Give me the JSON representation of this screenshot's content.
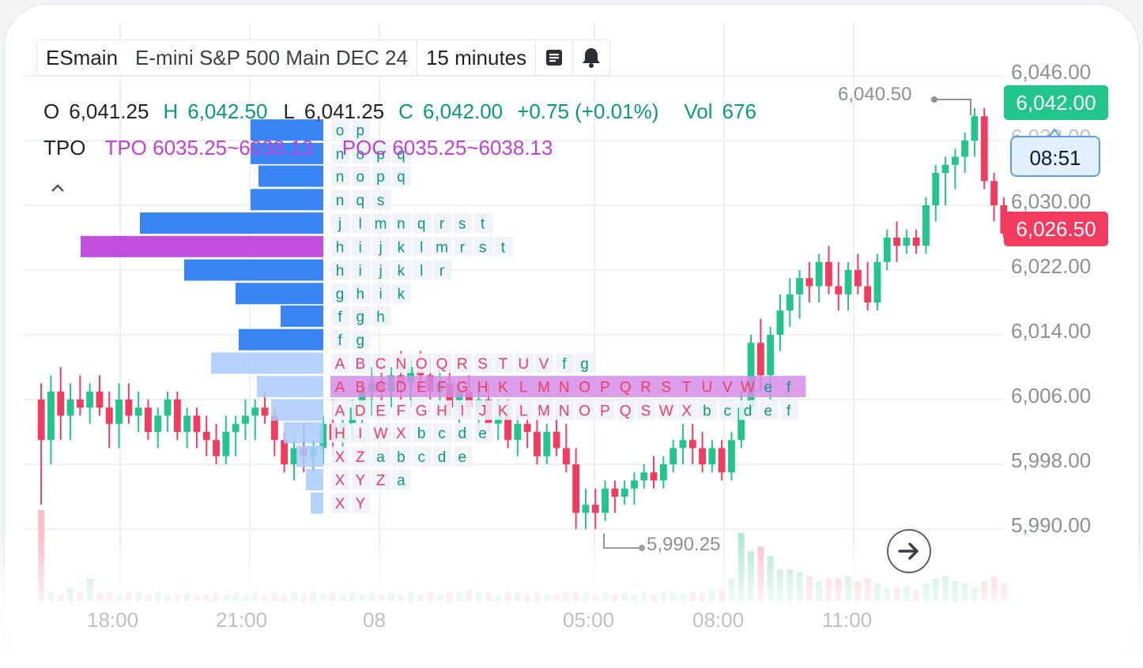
{
  "colors": {
    "up": "#22c58b",
    "down": "#f23b5f",
    "profile_dark": "#2f7ef5",
    "profile_light": "#a9cbfc",
    "poc": "#c046dc",
    "grid": "#eef0f3"
  },
  "header": {
    "symbol": "ESmain",
    "description": "E-mini S&P 500 Main DEC 24",
    "interval": "15 minutes",
    "icons": [
      "notes-icon",
      "bell-icon"
    ]
  },
  "ohlc": {
    "o_label": "O",
    "o_value": "6,041.25",
    "h_label": "H",
    "h_value": "6,042.50",
    "l_label": "L",
    "l_value": "6,041.25",
    "c_label": "C",
    "c_value": "6,042.00",
    "change": "+0.75 (+0.01%)",
    "vol_label": "Vol",
    "vol_value": "676"
  },
  "tpo": {
    "label": "TPO",
    "value_area": "TPO 6035.25~6038.13",
    "poc": "POC 6035.25~6038.13"
  },
  "price_tags": {
    "last": "6,042.00",
    "timer": "08:51",
    "other": "6,026.50"
  },
  "annotations": {
    "high": "6,040.50",
    "low": "5,990.25"
  },
  "chart_data": {
    "type": "candlestick",
    "y_axis_ticks": [
      "6,046.00",
      "6,038.00",
      "6,030.00",
      "6,022.00",
      "6,014.00",
      "6,006.00",
      "5,998.00",
      "5,990.00"
    ],
    "y_axis_values": [
      6046,
      6038,
      6030,
      6022,
      6014,
      6006,
      5998,
      5990
    ],
    "x_axis_ticks": [
      "18:00",
      "21:00",
      "08",
      "05:00",
      "08:00",
      "11:00"
    ],
    "ylim": [
      5984,
      6052
    ],
    "grid": true,
    "candles": [
      [
        6006,
        6008,
        5993,
        6001
      ],
      [
        6001,
        6009,
        5998,
        6007
      ],
      [
        6007,
        6010,
        6001,
        6004
      ],
      [
        6004,
        6008,
        6001,
        6006
      ],
      [
        6006,
        6009,
        6004,
        6005
      ],
      [
        6005,
        6008,
        6003,
        6007
      ],
      [
        6007,
        6009,
        6004,
        6005
      ],
      [
        6005,
        6007,
        6000,
        6003
      ],
      [
        6003,
        6008,
        6000,
        6006
      ],
      [
        6006,
        6008,
        6003,
        6004
      ],
      [
        6004,
        6007,
        6002,
        6005
      ],
      [
        6005,
        6006,
        6001,
        6002
      ],
      [
        6002,
        6005,
        6000,
        6004
      ],
      [
        6004,
        6007,
        6002,
        6006
      ],
      [
        6006,
        6007,
        6001,
        6002
      ],
      [
        6002,
        6005,
        6000,
        6004
      ],
      [
        6004,
        6005,
        6000,
        6002
      ],
      [
        6002,
        6004,
        5999,
        6001
      ],
      [
        6001,
        6003,
        5998,
        5999
      ],
      [
        5999,
        6004,
        5998,
        6002
      ],
      [
        6002,
        6004,
        5999,
        6003
      ],
      [
        6003,
        6006,
        6001,
        6004
      ],
      [
        6004,
        6006,
        6001,
        6005
      ],
      [
        6005,
        6007,
        6003,
        6004
      ],
      [
        6004,
        6005,
        5999,
        6001
      ],
      [
        6001,
        6002,
        5997,
        5998
      ],
      [
        5998,
        6001,
        5996,
        6000
      ],
      [
        6000,
        6003,
        5997,
        5999
      ],
      [
        5999,
        6001,
        5997,
        6000
      ],
      [
        6000,
        6004,
        5998,
        6003
      ],
      [
        6003,
        6006,
        5999,
        6001
      ],
      [
        6001,
        6005,
        5998,
        6003
      ],
      [
        6003,
        6006,
        6001,
        6005
      ],
      [
        6005,
        6008,
        6003,
        6007
      ],
      [
        6007,
        6010,
        6004,
        6008
      ],
      [
        6008,
        6011,
        6005,
        6007
      ],
      [
        6007,
        6010,
        6005,
        6009
      ],
      [
        6009,
        6012,
        6006,
        6008
      ],
      [
        6008,
        6011,
        6005,
        6010
      ],
      [
        6010,
        6012,
        6007,
        6009
      ],
      [
        6009,
        6011,
        6006,
        6007
      ],
      [
        6007,
        6010,
        6004,
        6008
      ],
      [
        6008,
        6010,
        6004,
        6005
      ],
      [
        6005,
        6008,
        6003,
        6007
      ],
      [
        6007,
        6009,
        6004,
        6005
      ],
      [
        6005,
        6008,
        6002,
        6006
      ],
      [
        6006,
        6008,
        6002,
        6003
      ],
      [
        6003,
        6006,
        6001,
        6004
      ],
      [
        6004,
        6006,
        6000,
        6001
      ],
      [
        6001,
        6004,
        5999,
        6003
      ],
      [
        6003,
        6005,
        6000,
        6002
      ],
      [
        6002,
        6004,
        5998,
        5999
      ],
      [
        5999,
        6003,
        5998,
        6002
      ],
      [
        6002,
        6004,
        5999,
        6000
      ],
      [
        6000,
        6003,
        5997,
        5998
      ],
      [
        5998,
        6000,
        5990,
        5992
      ],
      [
        5992,
        5995,
        5990,
        5993
      ],
      [
        5993,
        5995,
        5990,
        5992
      ],
      [
        5992,
        5996,
        5991,
        5995
      ],
      [
        5995,
        5996,
        5992,
        5994
      ],
      [
        5994,
        5996,
        5993,
        5995
      ],
      [
        5995,
        5997,
        5993,
        5996
      ],
      [
        5996,
        5998,
        5995,
        5997
      ],
      [
        5997,
        5999,
        5995,
        5996
      ],
      [
        5996,
        5999,
        5995,
        5998
      ],
      [
        5998,
        6001,
        5997,
        6000
      ],
      [
        6000,
        6003,
        5998,
        6001
      ],
      [
        6001,
        6003,
        5998,
        6000
      ],
      [
        6000,
        6002,
        5997,
        5998
      ],
      [
        5998,
        6001,
        5997,
        6000
      ],
      [
        6000,
        6001,
        5996,
        5997
      ],
      [
        5997,
        6002,
        5996,
        6001
      ],
      [
        6001,
        6007,
        6000,
        6005
      ],
      [
        6005,
        6014,
        6004,
        6013
      ],
      [
        6013,
        6016,
        6007,
        6009
      ],
      [
        6009,
        6015,
        6006,
        6014
      ],
      [
        6014,
        6019,
        6012,
        6017
      ],
      [
        6017,
        6021,
        6015,
        6019
      ],
      [
        6019,
        6022,
        6016,
        6021
      ],
      [
        6021,
        6023,
        6018,
        6020
      ],
      [
        6020,
        6024,
        6018,
        6023
      ],
      [
        6023,
        6025,
        6019,
        6020
      ],
      [
        6020,
        6023,
        6017,
        6019
      ],
      [
        6019,
        6023,
        6017,
        6022
      ],
      [
        6022,
        6024,
        6019,
        6020
      ],
      [
        6020,
        6023,
        6017,
        6018
      ],
      [
        6018,
        6024,
        6017,
        6023
      ],
      [
        6023,
        6027,
        6022,
        6026
      ],
      [
        6026,
        6028,
        6023,
        6025
      ],
      [
        6025,
        6027,
        6024,
        6026
      ],
      [
        6026,
        6027,
        6024,
        6025
      ],
      [
        6025,
        6031,
        6024,
        6030
      ],
      [
        6030,
        6035,
        6028,
        6034
      ],
      [
        6034,
        6036,
        6030,
        6035
      ],
      [
        6035,
        6037,
        6032,
        6036
      ],
      [
        6036,
        6039,
        6034,
        6038
      ],
      [
        6038,
        6042,
        6036,
        6041
      ],
      [
        6041,
        6042,
        6032,
        6033
      ],
      [
        6033,
        6034,
        6028,
        6030
      ],
      [
        6030,
        6031,
        6026,
        6026.5
      ]
    ],
    "volume": [
      40,
      4,
      3,
      6,
      4,
      10,
      4,
      4,
      3,
      4,
      4,
      3,
      4,
      3,
      3,
      4,
      3,
      3,
      4,
      3,
      4,
      3,
      4,
      3,
      4,
      3,
      4,
      3,
      4,
      3,
      4,
      3,
      4,
      3,
      4,
      3,
      4,
      3,
      4,
      3,
      4,
      3,
      4,
      4,
      5,
      4,
      4,
      3,
      4,
      4,
      3,
      4,
      3,
      3,
      4,
      4,
      4,
      3,
      4,
      3,
      4,
      3,
      4,
      3,
      4,
      4,
      3,
      4,
      4,
      5,
      5,
      10,
      30,
      22,
      24,
      20,
      14,
      14,
      13,
      11,
      9,
      10,
      10,
      11,
      9,
      10,
      8,
      6,
      6,
      7,
      5,
      8,
      10,
      11,
      9,
      8,
      6,
      9,
      11,
      8
    ],
    "profile": [
      {
        "price": 6039.3,
        "bar": 92,
        "letters": [
          "o",
          "p"
        ],
        "poc": false,
        "dark": true
      },
      {
        "price": 6036.4,
        "bar": 92,
        "letters": [
          "n",
          "o",
          "p",
          "q"
        ],
        "poc": false,
        "dark": true
      },
      {
        "price": 6033.6,
        "bar": 82,
        "letters": [
          "n",
          "o",
          "p",
          "q"
        ],
        "poc": false,
        "dark": true
      },
      {
        "price": 6030.7,
        "bar": 92,
        "letters": [
          "n",
          "q",
          "s"
        ],
        "poc": false,
        "dark": true
      },
      {
        "price": 6027.8,
        "bar": 232,
        "letters": [
          "j",
          "l",
          "m",
          "n",
          "q",
          "r",
          "s",
          "t"
        ],
        "poc": false,
        "dark": true
      },
      {
        "price": 6024.9,
        "bar": 307,
        "letters": [
          "h",
          "i",
          "j",
          "k",
          "l",
          "m",
          "r",
          "s",
          "t"
        ],
        "poc": true,
        "dark": true
      },
      {
        "price": 6022.0,
        "bar": 176,
        "letters": [
          "h",
          "i",
          "j",
          "k",
          "l",
          "r"
        ],
        "poc": false,
        "dark": true
      },
      {
        "price": 6019.1,
        "bar": 111,
        "letters": [
          "g",
          "h",
          "i",
          "k"
        ],
        "poc": false,
        "dark": true
      },
      {
        "price": 6016.3,
        "bar": 54,
        "letters": [
          "f",
          "g",
          "h"
        ],
        "poc": false,
        "dark": true
      },
      {
        "price": 6013.4,
        "bar": 107,
        "letters": [
          "f",
          "g"
        ],
        "poc": false,
        "dark": true
      },
      {
        "price": 6010.5,
        "bar": 142,
        "letters": [
          "A",
          "B",
          "C",
          "N",
          "O",
          "Q",
          "R",
          "S",
          "T",
          "U",
          "V",
          "f",
          "g"
        ],
        "poc": false,
        "dark": false
      },
      {
        "price": 6007.6,
        "bar": 84,
        "letters": [
          "A",
          "B",
          "C",
          "D",
          "E",
          "F",
          "G",
          "H",
          "K",
          "L",
          "M",
          "N",
          "O",
          "P",
          "Q",
          "R",
          "S",
          "T",
          "U",
          "V",
          "W",
          "e",
          "f"
        ],
        "poc": true,
        "dark": false
      },
      {
        "price": 6004.7,
        "bar": 66,
        "letters": [
          "A",
          "D",
          "E",
          "F",
          "G",
          "H",
          "I",
          "J",
          "K",
          "L",
          "M",
          "N",
          "O",
          "P",
          "Q",
          "S",
          "W",
          "X",
          "b",
          "c",
          "d",
          "e",
          "f"
        ],
        "poc": false,
        "dark": false
      },
      {
        "price": 6001.9,
        "bar": 50,
        "letters": [
          "H",
          "I",
          "W",
          "X",
          "b",
          "c",
          "d",
          "e"
        ],
        "poc": false,
        "dark": false
      },
      {
        "price": 5999.0,
        "bar": 34,
        "letters": [
          "X",
          "Z",
          "a",
          "b",
          "c",
          "d",
          "e"
        ],
        "poc": false,
        "dark": false
      },
      {
        "price": 5996.1,
        "bar": 22,
        "letters": [
          "X",
          "Y",
          "Z",
          "a"
        ],
        "poc": false,
        "dark": false
      },
      {
        "price": 5993.2,
        "bar": 16,
        "letters": [
          "X",
          "Y"
        ],
        "poc": false,
        "dark": false
      }
    ]
  }
}
